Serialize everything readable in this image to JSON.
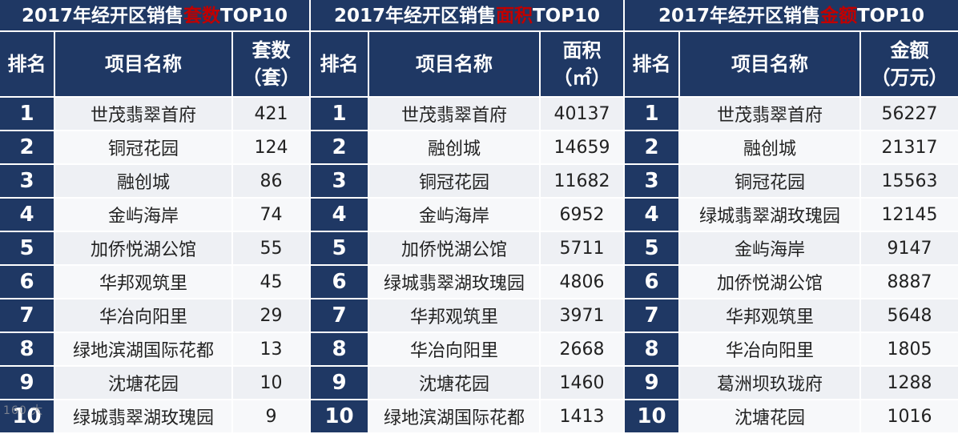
{
  "panels": [
    {
      "title_pre": "2017年经开区销售",
      "title_hl": "套数",
      "title_post": "TOP10",
      "col_rank": "排名",
      "col_name": "项目名称",
      "col_val_line1": "套数",
      "col_val_line2": "（套）",
      "rows": [
        {
          "rank": "1",
          "name": "世茂翡翠首府",
          "val": "421"
        },
        {
          "rank": "2",
          "name": "铜冠花园",
          "val": "124"
        },
        {
          "rank": "3",
          "name": "融创城",
          "val": "86"
        },
        {
          "rank": "4",
          "name": "金屿海岸",
          "val": "74"
        },
        {
          "rank": "5",
          "name": "加侨悦湖公馆",
          "val": "55"
        },
        {
          "rank": "6",
          "name": "华邦观筑里",
          "val": "45"
        },
        {
          "rank": "7",
          "name": "华冶向阳里",
          "val": "29"
        },
        {
          "rank": "8",
          "name": "绿地滨湖国际花都",
          "val": "13"
        },
        {
          "rank": "9",
          "name": "沈塘花园",
          "val": "10"
        },
        {
          "rank": "10",
          "name": "绿城翡翠湖玫瑰园",
          "val": "9"
        }
      ]
    },
    {
      "title_pre": "2017年经开区销售",
      "title_hl": "面积",
      "title_post": "TOP10",
      "col_rank": "排名",
      "col_name": "项目名称",
      "col_val_line1": "面积",
      "col_val_line2": "（㎡）",
      "rows": [
        {
          "rank": "1",
          "name": "世茂翡翠首府",
          "val": "40137"
        },
        {
          "rank": "2",
          "name": "融创城",
          "val": "14659"
        },
        {
          "rank": "3",
          "name": "铜冠花园",
          "val": "11682"
        },
        {
          "rank": "4",
          "name": "金屿海岸",
          "val": "6952"
        },
        {
          "rank": "5",
          "name": "加侨悦湖公馆",
          "val": "5711"
        },
        {
          "rank": "6",
          "name": "绿城翡翠湖玫瑰园",
          "val": "4806"
        },
        {
          "rank": "7",
          "name": "华邦观筑里",
          "val": "3971"
        },
        {
          "rank": "8",
          "name": "华冶向阳里",
          "val": "2668"
        },
        {
          "rank": "9",
          "name": "沈塘花园",
          "val": "1460"
        },
        {
          "rank": "10",
          "name": "绿地滨湖国际花都",
          "val": "1413"
        }
      ]
    },
    {
      "title_pre": "2017年经开区销售",
      "title_hl": "金额",
      "title_post": "TOP10",
      "col_rank": "排名",
      "col_name": "项目名称",
      "col_val_line1": "金额",
      "col_val_line2": "（万元）",
      "rows": [
        {
          "rank": "1",
          "name": "世茂翡翠首府",
          "val": "56227"
        },
        {
          "rank": "2",
          "name": "融创城",
          "val": "21317"
        },
        {
          "rank": "3",
          "name": "铜冠花园",
          "val": "15563"
        },
        {
          "rank": "4",
          "name": "绿城翡翠湖玫瑰园",
          "val": "12145"
        },
        {
          "rank": "5",
          "name": "金屿海岸",
          "val": "9147"
        },
        {
          "rank": "6",
          "name": "加侨悦湖公馆",
          "val": "8887"
        },
        {
          "rank": "7",
          "name": "华邦观筑里",
          "val": "5648"
        },
        {
          "rank": "8",
          "name": "华冶向阳里",
          "val": "1805"
        },
        {
          "rank": "9",
          "name": "葛洲坝玖珑府",
          "val": "1288"
        },
        {
          "rank": "10",
          "name": "沈塘花园",
          "val": "1016"
        }
      ]
    }
  ],
  "watermark": "160 大"
}
